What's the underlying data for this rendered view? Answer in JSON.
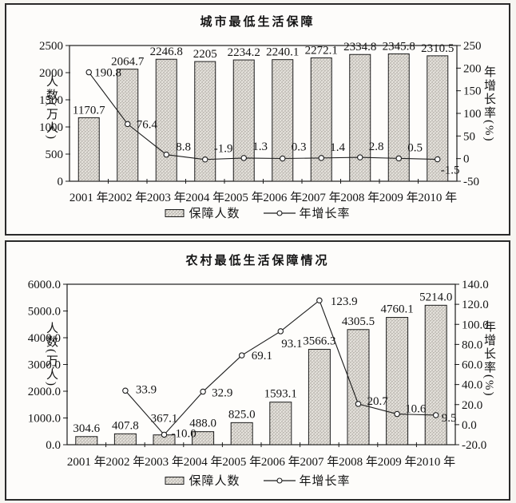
{
  "chart_data": [
    {
      "type": "combo",
      "title": "城市最低生活保障",
      "categories": [
        "2001 年",
        "2002 年",
        "2003 年",
        "2004 年",
        "2005 年",
        "2006 年",
        "2007 年",
        "2008 年",
        "2009 年",
        "2010 年"
      ],
      "series": [
        {
          "name": "保障人数",
          "type": "bar",
          "axis": "left",
          "values": [
            1170.7,
            2064.7,
            2246.8,
            2205,
            2234.2,
            2240.1,
            2272.1,
            2334.8,
            2345.8,
            2310.5
          ],
          "labels": [
            "1170.7",
            "2064.7",
            "2246.8",
            "2205",
            "2234.2",
            "2240.1",
            "2272.1",
            "2334.8",
            "2345.8",
            "2310.5"
          ],
          "label_offsets": [
            [
              0,
              -5
            ],
            [
              0,
              -5
            ],
            [
              0,
              -5
            ],
            [
              0,
              -5
            ],
            [
              0,
              -5
            ],
            [
              0,
              -5
            ],
            [
              0,
              -5
            ],
            [
              0,
              -5
            ],
            [
              0,
              -5
            ],
            [
              0,
              -5
            ]
          ]
        },
        {
          "name": "年增长率",
          "type": "line",
          "axis": "right",
          "values": [
            190.8,
            76.4,
            8.8,
            -1.9,
            1.3,
            0.3,
            1.4,
            2.8,
            0.5,
            -1.5
          ],
          "labels": [
            "190.8",
            "76.4",
            "8.8",
            "-1.9",
            "1.3",
            "0.3",
            "1.4",
            "2.8",
            "0.5",
            "-1.5"
          ],
          "label_offsets": [
            [
              7,
              5
            ],
            [
              11,
              5
            ],
            [
              12,
              -5
            ],
            [
              11,
              -9
            ],
            [
              11,
              -10
            ],
            [
              11,
              -10
            ],
            [
              11,
              -9
            ],
            [
              11,
              -9
            ],
            [
              11,
              -9
            ],
            [
              4,
              18
            ]
          ]
        }
      ],
      "left_axis": {
        "title": "人数(万人)",
        "min": 0,
        "max": 2500,
        "step": 500,
        "ticks": [
          "0",
          "500",
          "1000",
          "1500",
          "2000",
          "2500"
        ]
      },
      "right_axis": {
        "title": "年增长率(%)",
        "min": -50,
        "max": 250,
        "step": 50,
        "ticks": [
          "-50",
          "0",
          "50",
          "100",
          "150",
          "200",
          "250"
        ]
      },
      "legend": [
        {
          "label": "保障人数"
        },
        {
          "label": "年增长率"
        }
      ],
      "legend_position": "bottom",
      "grid": false
    },
    {
      "type": "combo",
      "title": "农村最低生活保障情况",
      "categories": [
        "2001 年",
        "2002 年",
        "2003 年",
        "2004 年",
        "2005 年",
        "2006 年",
        "2007 年",
        "2008 年",
        "2009 年",
        "2010 年"
      ],
      "series": [
        {
          "name": "保障人数",
          "type": "bar",
          "axis": "left",
          "values": [
            304.6,
            407.8,
            367.1,
            488.0,
            825.0,
            1593.1,
            3566.3,
            4305.5,
            4760.1,
            5214.0
          ],
          "labels": [
            "304.6",
            "407.8",
            "367.1",
            "488.0",
            "825.0",
            "1593.1",
            "3566.3",
            "4305.5",
            "4760.1",
            "5214.0"
          ],
          "label_offsets": [
            [
              0,
              -6
            ],
            [
              0,
              -6
            ],
            [
              0,
              -16
            ],
            [
              0,
              -6
            ],
            [
              0,
              -6
            ],
            [
              0,
              -6
            ],
            [
              0,
              -6
            ],
            [
              0,
              -6
            ],
            [
              0,
              -6
            ],
            [
              0,
              -6
            ]
          ]
        },
        {
          "name": "年增长率",
          "type": "line",
          "axis": "right",
          "values": [
            null,
            33.9,
            -10.0,
            32.9,
            69.1,
            93.1,
            123.9,
            20.7,
            10.6,
            9.5
          ],
          "labels": [
            "",
            "33.9",
            "-10.0",
            "32.9",
            "69.1",
            "93.1",
            "123.9",
            "20.7",
            "10.6",
            "9.5"
          ],
          "label_offsets": [
            [
              0,
              0
            ],
            [
              13,
              3
            ],
            [
              9,
              3
            ],
            [
              11,
              6
            ],
            [
              12,
              5
            ],
            [
              1,
              20
            ],
            [
              14,
              6
            ],
            [
              11,
              1
            ],
            [
              10,
              -2
            ],
            [
              7,
              8
            ]
          ]
        }
      ],
      "left_axis": {
        "title": "人数(万人)",
        "min": 0,
        "max": 6000,
        "step": 1000,
        "ticks": [
          "0.0",
          "1000.0",
          "2000.0",
          "3000.0",
          "4000.0",
          "5000.0",
          "6000.0"
        ]
      },
      "right_axis": {
        "title": "年增长率(%)",
        "min": -20,
        "max": 140,
        "step": 20,
        "ticks": [
          "-20.0",
          "0.0",
          "20.0",
          "40.0",
          "60.0",
          "80.0",
          "100.0",
          "120.0",
          "140.0"
        ]
      },
      "legend": [
        {
          "label": "保障人数"
        },
        {
          "label": "年增长率"
        }
      ],
      "legend_position": "bottom",
      "grid": false
    }
  ]
}
